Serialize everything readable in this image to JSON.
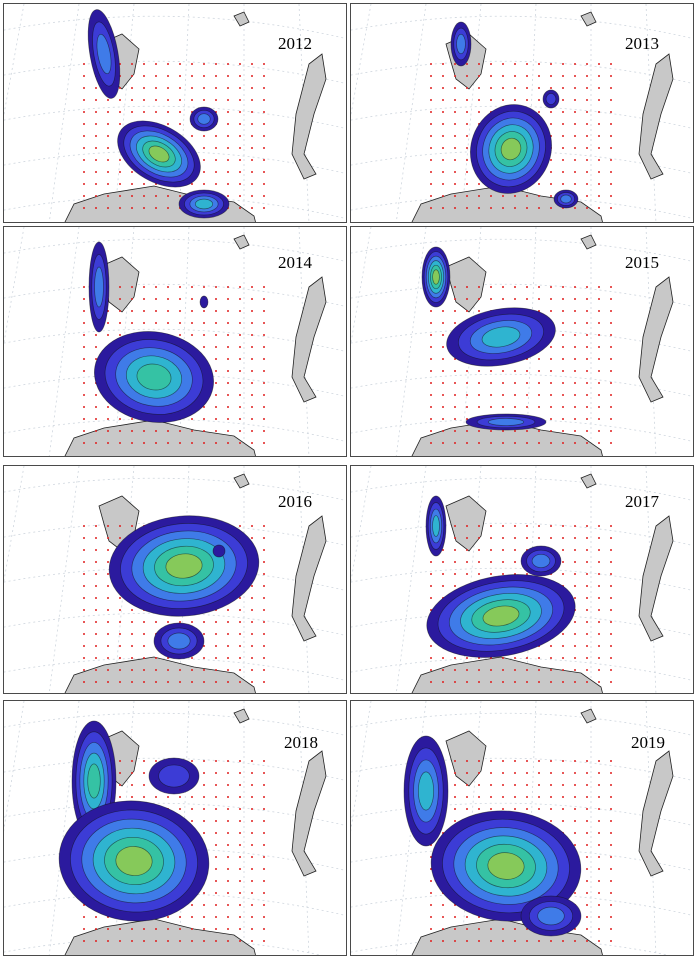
{
  "panels": [
    {
      "year": "2012"
    },
    {
      "year": "2013"
    },
    {
      "year": "2014"
    },
    {
      "year": "2015"
    },
    {
      "year": "2016"
    },
    {
      "year": "2017"
    },
    {
      "year": "2018"
    },
    {
      "year": "2019"
    }
  ],
  "colors": {
    "land": "#c8c8c8",
    "coastline": "#222222",
    "station": "#e02020",
    "graticule": "#cfd6de",
    "contour_levels": [
      "#2b1a9e",
      "#3c3cd6",
      "#3f7be8",
      "#2fb4d0",
      "#35c2a4",
      "#86c95a",
      "#d9c63a",
      "#f2b02a"
    ]
  }
}
